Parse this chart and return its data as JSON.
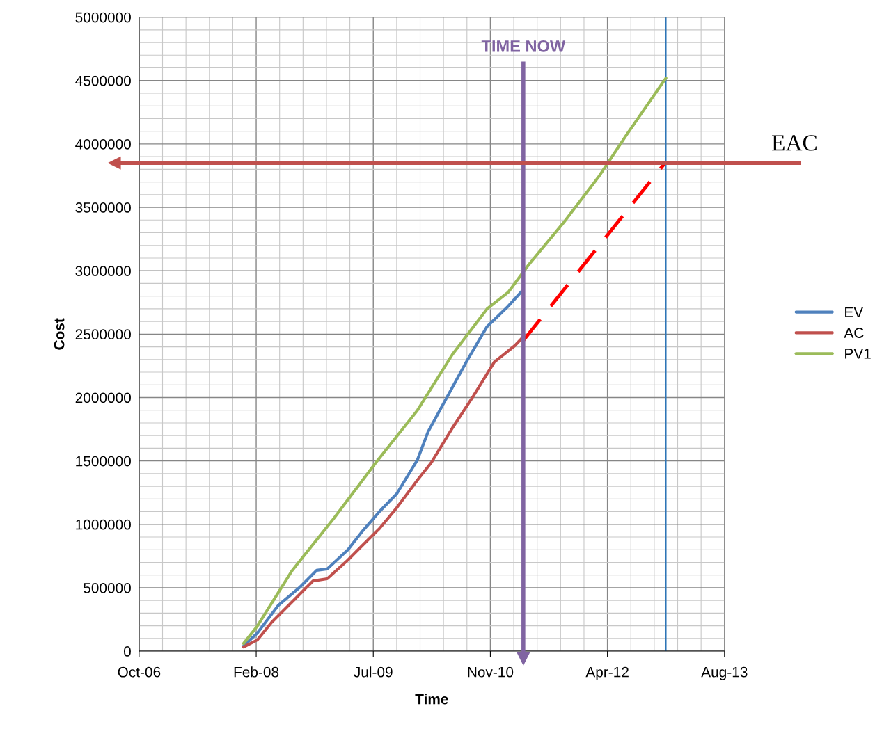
{
  "chart_data": {
    "type": "line",
    "xlabel": "Time",
    "ylabel": "Cost",
    "xlim": [
      "2006-10-15",
      "2013-08-19"
    ],
    "xticks": [
      {
        "value": "2006-10-15",
        "label": "Oct-06"
      },
      {
        "value": "2008-02-27",
        "label": "Feb-08"
      },
      {
        "value": "2009-07-11",
        "label": "Jul-09"
      },
      {
        "value": "2010-11-23",
        "label": "Nov-10"
      },
      {
        "value": "2012-04-06",
        "label": "Apr-12"
      },
      {
        "value": "2013-08-19",
        "label": "Aug-13"
      }
    ],
    "ylim": [
      0,
      5000000
    ],
    "yticks": [
      0,
      500000,
      1000000,
      1500000,
      2000000,
      2500000,
      3000000,
      3500000,
      4000000,
      4500000,
      5000000
    ],
    "grid": true,
    "legend": "right",
    "series": [
      {
        "name": "EV",
        "color": "#4f81bd",
        "x": [
          "2008-01-04",
          "2008-03-03",
          "2008-06-01",
          "2008-08-29",
          "2008-11-11",
          "2008-12-26",
          "2009-03-25",
          "2009-05-23",
          "2009-08-06",
          "2009-10-19",
          "2010-01-16",
          "2010-03-02",
          "2010-05-15",
          "2010-08-12",
          "2010-11-09",
          "2011-02-07",
          "2011-04-07"
        ],
        "values": [
          40000,
          143000,
          362000,
          500000,
          637000,
          648000,
          800000,
          940000,
          1100000,
          1240000,
          1510000,
          1730000,
          1980000,
          2280000,
          2560000,
          2720000,
          2840000
        ]
      },
      {
        "name": "AC",
        "color": "#c0504d",
        "x": [
          "2008-01-04",
          "2008-03-03",
          "2008-05-02",
          "2008-07-30",
          "2008-10-27",
          "2008-12-26",
          "2009-03-25",
          "2009-05-23",
          "2009-08-06",
          "2009-10-19",
          "2010-01-16",
          "2010-03-17",
          "2010-06-14",
          "2010-09-11",
          "2010-12-10",
          "2011-03-08",
          "2011-04-13"
        ],
        "values": [
          33000,
          88000,
          225000,
          390000,
          554000,
          571000,
          719000,
          829000,
          966000,
          1130000,
          1350000,
          1490000,
          1760000,
          2010000,
          2280000,
          2410000,
          2480000
        ]
      },
      {
        "name": "PV1",
        "color": "#9bbb59",
        "x": [
          "2008-01-04",
          "2008-03-03",
          "2008-07-30",
          "2009-01-24",
          "2009-07-22",
          "2010-01-16",
          "2010-06-14",
          "2010-11-09",
          "2011-02-07",
          "2011-05-07",
          "2011-10-02",
          "2012-02-28",
          "2012-06-26",
          "2012-12-12"
        ],
        "values": [
          60000,
          198000,
          637000,
          1048000,
          1487000,
          1900000,
          2340000,
          2700000,
          2830000,
          3050000,
          3380000,
          3740000,
          4070000,
          4520000
        ]
      },
      {
        "color": "#ff0000",
        "line_style": "dashed",
        "x": [
          "2011-04-13",
          "2012-12-12"
        ],
        "values": [
          2450000,
          3860000
        ]
      }
    ],
    "ref_lines": [
      {
        "axis": "x",
        "value": "2011-04-13",
        "label": "TIME NOW",
        "color": "#8064a2"
      },
      {
        "axis": "x",
        "value": "2012-12-12",
        "color": "#2e75b6"
      },
      {
        "axis": "y",
        "value": 3850000,
        "label": "EAC",
        "color": "#c0504d"
      }
    ]
  }
}
